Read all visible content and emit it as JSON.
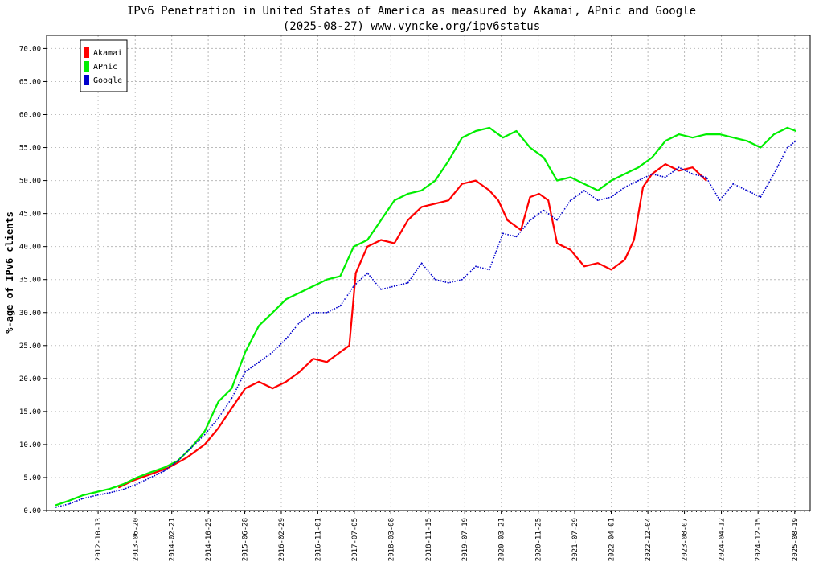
{
  "chart_data": {
    "type": "line",
    "title": "IPv6 Penetration in United States of America as measured by Akamai, APnic and Google",
    "subtitle": "(2025-08-27) www.vyncke.org/ipv6status",
    "xlabel": "",
    "ylabel": "%-age of IPv6 clients",
    "xlim": [
      "2011-11-01",
      "2025-12-01"
    ],
    "ylim": [
      0,
      72
    ],
    "grid": true,
    "legend_position": "top-left",
    "y_ticks": [
      "0.00",
      "5.00",
      "10.00",
      "15.00",
      "20.00",
      "25.00",
      "30.00",
      "35.00",
      "40.00",
      "45.00",
      "50.00",
      "55.00",
      "60.00",
      "65.00",
      "70.00"
    ],
    "x_ticks": [
      "2012-10-13",
      "2013-06-20",
      "2014-02-21",
      "2014-10-25",
      "2015-06-28",
      "2016-02-29",
      "2016-11-01",
      "2017-07-05",
      "2018-03-08",
      "2018-11-15",
      "2019-07-19",
      "2020-03-21",
      "2020-11-25",
      "2021-07-29",
      "2022-04-01",
      "2022-12-04",
      "2023-08-07",
      "2024-04-12",
      "2024-12-15",
      "2025-08-19"
    ],
    "series": [
      {
        "name": "Akamai",
        "color": "#ff0000",
        "style": "solid",
        "x": [
          "2013-03-01",
          "2013-06-01",
          "2013-10-01",
          "2014-02-01",
          "2014-06-01",
          "2014-10-01",
          "2015-01-01",
          "2015-04-01",
          "2015-07-01",
          "2015-10-01",
          "2016-01-01",
          "2016-04-01",
          "2016-07-01",
          "2016-10-01",
          "2017-01-01",
          "2017-04-01",
          "2017-06-01",
          "2017-07-15",
          "2017-10-01",
          "2018-01-01",
          "2018-04-01",
          "2018-07-01",
          "2018-10-01",
          "2019-01-01",
          "2019-04-01",
          "2019-07-01",
          "2019-10-01",
          "2020-01-01",
          "2020-03-01",
          "2020-05-01",
          "2020-08-01",
          "2020-10-01",
          "2020-12-01",
          "2021-02-01",
          "2021-04-01",
          "2021-07-01",
          "2021-10-01",
          "2022-01-01",
          "2022-04-01",
          "2022-07-01",
          "2022-09-01",
          "2022-11-01",
          "2023-01-01",
          "2023-04-01",
          "2023-07-01",
          "2023-10-01",
          "2024-01-01"
        ],
        "y": [
          3.5,
          4.5,
          5.5,
          6.5,
          8.0,
          10.0,
          12.5,
          15.5,
          18.5,
          19.5,
          18.5,
          19.5,
          21.0,
          23.0,
          22.5,
          24.0,
          25.0,
          36.0,
          40.0,
          41.0,
          40.5,
          44.0,
          46.0,
          46.5,
          47.0,
          49.5,
          50.0,
          48.5,
          47.0,
          44.0,
          42.5,
          47.5,
          48.0,
          47.0,
          40.5,
          39.5,
          37.0,
          37.5,
          36.5,
          38.0,
          41.0,
          49.0,
          51.0,
          52.5,
          51.5,
          52.0,
          50.0
        ]
      },
      {
        "name": "APnic",
        "color": "#00ee00",
        "style": "solid",
        "x": [
          "2012-01-01",
          "2012-04-01",
          "2012-07-01",
          "2012-10-01",
          "2013-01-01",
          "2013-04-01",
          "2013-07-01",
          "2013-10-01",
          "2014-01-01",
          "2014-04-01",
          "2014-07-01",
          "2014-10-01",
          "2015-01-01",
          "2015-04-01",
          "2015-07-01",
          "2015-10-01",
          "2016-01-01",
          "2016-04-01",
          "2016-07-01",
          "2016-10-01",
          "2017-01-01",
          "2017-04-01",
          "2017-07-01",
          "2017-10-01",
          "2018-01-01",
          "2018-04-01",
          "2018-07-01",
          "2018-10-01",
          "2019-01-01",
          "2019-04-01",
          "2019-07-01",
          "2019-10-01",
          "2020-01-01",
          "2020-04-01",
          "2020-07-01",
          "2020-10-01",
          "2021-01-01",
          "2021-04-01",
          "2021-07-01",
          "2021-10-01",
          "2022-01-01",
          "2022-04-01",
          "2022-07-01",
          "2022-10-01",
          "2023-01-01",
          "2023-04-01",
          "2023-07-01",
          "2023-10-01",
          "2024-01-01",
          "2024-04-01",
          "2024-07-01",
          "2024-10-01",
          "2025-01-01",
          "2025-04-01",
          "2025-07-01",
          "2025-08-27"
        ],
        "y": [
          0.8,
          1.5,
          2.3,
          2.8,
          3.3,
          4.0,
          5.0,
          5.8,
          6.5,
          7.5,
          9.5,
          12.0,
          16.5,
          18.5,
          24.0,
          28.0,
          30.0,
          32.0,
          33.0,
          34.0,
          35.0,
          35.5,
          40.0,
          41.0,
          44.0,
          47.0,
          48.0,
          48.5,
          50.0,
          53.0,
          56.5,
          57.5,
          58.0,
          56.5,
          57.5,
          55.0,
          53.5,
          50.0,
          50.5,
          49.5,
          48.5,
          50.0,
          51.0,
          52.0,
          53.5,
          56.0,
          57.0,
          56.5,
          57.0,
          57.0,
          56.5,
          56.0,
          55.0,
          57.0,
          58.0,
          57.5
        ]
      },
      {
        "name": "Google",
        "color": "#0000cc",
        "style": "dotted",
        "x": [
          "2012-01-01",
          "2012-04-01",
          "2012-07-01",
          "2012-10-01",
          "2013-01-01",
          "2013-04-01",
          "2013-07-01",
          "2013-10-01",
          "2014-01-01",
          "2014-04-01",
          "2014-07-01",
          "2014-10-01",
          "2015-01-01",
          "2015-04-01",
          "2015-07-01",
          "2015-10-01",
          "2016-01-01",
          "2016-04-01",
          "2016-07-01",
          "2016-10-01",
          "2017-01-01",
          "2017-04-01",
          "2017-07-01",
          "2017-10-01",
          "2018-01-01",
          "2018-04-01",
          "2018-07-01",
          "2018-10-01",
          "2019-01-01",
          "2019-04-01",
          "2019-07-01",
          "2019-10-01",
          "2020-01-01",
          "2020-04-01",
          "2020-07-01",
          "2020-10-01",
          "2021-01-01",
          "2021-04-01",
          "2021-07-01",
          "2021-10-01",
          "2022-01-01",
          "2022-04-01",
          "2022-07-01",
          "2022-10-01",
          "2023-01-01",
          "2023-04-01",
          "2023-07-01",
          "2023-10-01",
          "2024-01-01",
          "2024-04-01",
          "2024-07-01",
          "2024-10-01",
          "2025-01-01",
          "2025-04-01",
          "2025-07-01",
          "2025-08-27"
        ],
        "y": [
          0.5,
          1.0,
          1.8,
          2.3,
          2.7,
          3.2,
          4.0,
          5.0,
          6.0,
          7.5,
          9.5,
          11.5,
          14.0,
          17.0,
          21.0,
          22.5,
          24.0,
          26.0,
          28.5,
          30.0,
          30.0,
          31.0,
          34.0,
          36.0,
          33.5,
          34.0,
          34.5,
          37.5,
          35.0,
          34.5,
          35.0,
          37.0,
          36.5,
          42.0,
          41.5,
          44.0,
          45.5,
          44.0,
          47.0,
          48.5,
          47.0,
          47.5,
          49.0,
          50.0,
          51.0,
          50.5,
          52.0,
          51.0,
          50.5,
          47.0,
          49.5,
          48.5,
          47.5,
          51.0,
          55.0,
          56.0
        ]
      }
    ]
  }
}
